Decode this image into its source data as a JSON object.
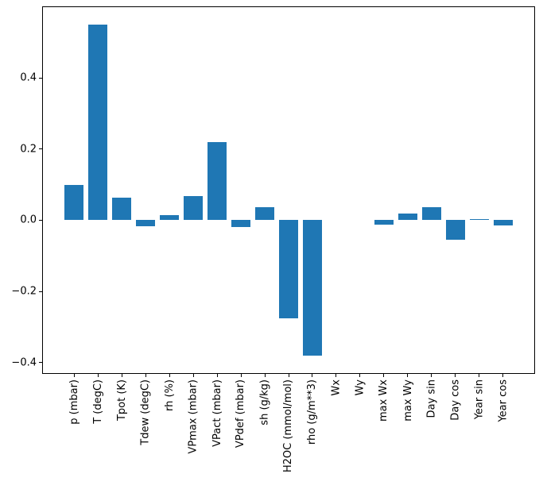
{
  "figure": {
    "background_color": "#ffffff",
    "spine_color": "#000000",
    "text_color": "#000000"
  },
  "chart_data": {
    "type": "bar",
    "title": "",
    "xlabel": "",
    "ylabel": "",
    "categories": [
      "p (mbar)",
      "T (degC)",
      "Tpot (K)",
      "Tdew (degC)",
      "rh (%)",
      "VPmax (mbar)",
      "VPact (mbar)",
      "VPdef (mbar)",
      "sh (g/kg)",
      "H2OC (mmol/mol)",
      "rho (g/m**3)",
      "Wx",
      "Wy",
      "max Wx",
      "max Wy",
      "Day sin",
      "Day cos",
      "Year sin",
      "Year cos"
    ],
    "values": [
      0.1,
      0.55,
      0.064,
      -0.018,
      0.014,
      0.068,
      0.22,
      -0.02,
      0.037,
      -0.275,
      -0.38,
      0.0,
      0.0,
      -0.012,
      0.018,
      0.036,
      -0.056,
      0.003,
      -0.015
    ],
    "bar_color": "#1f77b4",
    "yticks": [
      -0.4,
      -0.2,
      0.0,
      0.2,
      0.4
    ],
    "ytick_labels": [
      "−0.4",
      "−0.2",
      "0.0",
      "0.2",
      "0.4"
    ],
    "ylim": [
      -0.432,
      0.601
    ],
    "x_label_rotation": 90,
    "grid": false,
    "legend": "none"
  }
}
